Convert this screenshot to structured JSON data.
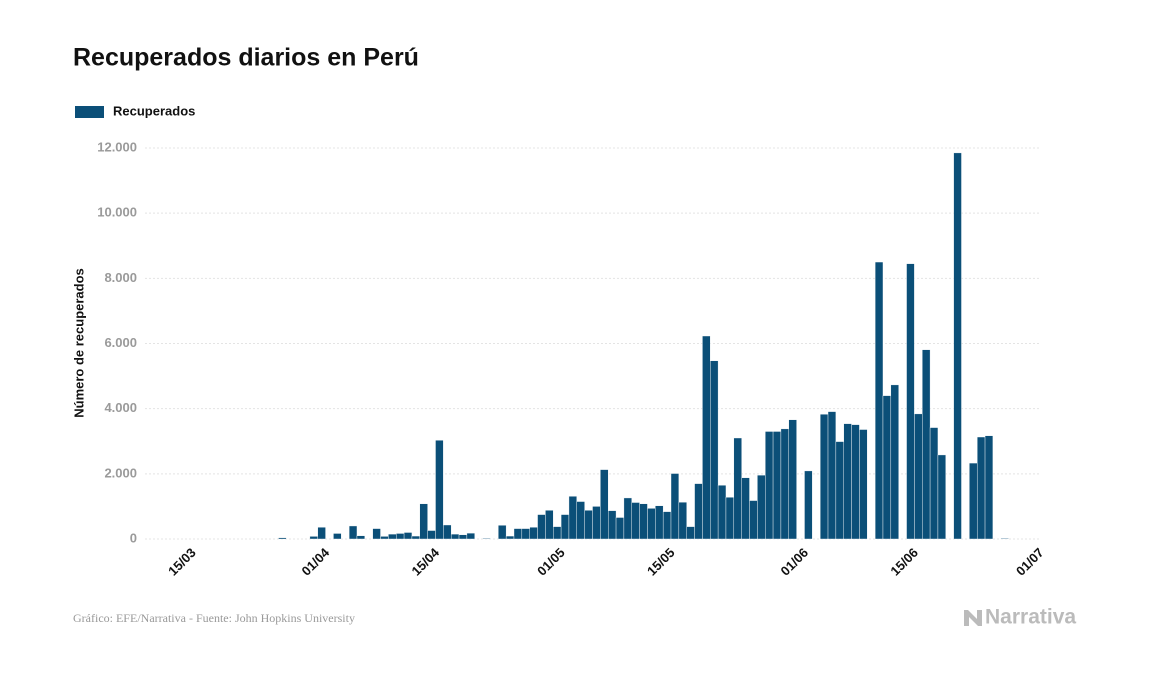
{
  "chart_data": {
    "type": "bar",
    "title": "Recuperados diarios en Perú",
    "ylabel": "Número de recuperados",
    "source": "Gráfico: EFE/Narrativa - Fuente: John Hopkins University",
    "brand": "Narrativa",
    "categories": [
      null,
      null,
      null,
      null,
      null,
      "15/03",
      null,
      null,
      null,
      null,
      null,
      null,
      null,
      null,
      null,
      null,
      null,
      null,
      null,
      null,
      null,
      null,
      "01/04",
      null,
      null,
      null,
      null,
      null,
      null,
      null,
      null,
      null,
      null,
      null,
      null,
      null,
      "15/04",
      null,
      null,
      null,
      null,
      null,
      null,
      null,
      null,
      null,
      null,
      null,
      null,
      null,
      null,
      null,
      "01/05",
      null,
      null,
      null,
      null,
      null,
      null,
      null,
      null,
      null,
      null,
      null,
      null,
      null,
      "15/05",
      null,
      null,
      null,
      null,
      null,
      null,
      null,
      null,
      null,
      null,
      null,
      null,
      null,
      null,
      null,
      null,
      "01/06",
      null,
      null,
      null,
      null,
      null,
      null,
      null,
      null,
      null,
      null,
      null,
      null,
      null,
      "15/06",
      null,
      null,
      null,
      null,
      null,
      null,
      null,
      null,
      null,
      null,
      null,
      null,
      null,
      null,
      null,
      "01/07"
    ],
    "series": [
      {
        "name": "Recuperados",
        "color": "#0b4f78",
        "values": [
          0,
          0,
          0,
          0,
          0,
          0,
          0,
          0,
          0,
          0,
          0,
          0,
          0,
          0,
          0,
          0,
          0,
          40,
          0,
          0,
          0,
          80,
          360,
          0,
          170,
          0,
          400,
          100,
          0,
          320,
          80,
          150,
          170,
          200,
          90,
          1080,
          260,
          3030,
          430,
          150,
          130,
          180,
          0,
          20,
          0,
          420,
          90,
          320,
          320,
          360,
          750,
          880,
          380,
          750,
          1310,
          1150,
          880,
          1000,
          2130,
          870,
          660,
          1260,
          1120,
          1080,
          940,
          1020,
          840,
          2010,
          1130,
          380,
          1700,
          6230,
          5470,
          1650,
          1280,
          3100,
          1880,
          1180,
          1960,
          3300,
          3300,
          3380,
          3660,
          0,
          2090,
          0,
          3830,
          3910,
          2990,
          3540,
          3510,
          3360,
          0,
          8500,
          4400,
          4730,
          0,
          8450,
          3840,
          5810,
          3420,
          2580,
          0,
          11850,
          0,
          2330,
          3130,
          3170,
          0,
          20,
          0,
          0,
          0,
          0
        ]
      }
    ],
    "ylim": [
      0,
      12000
    ],
    "yticks": [
      0,
      {
        "value": 2000,
        "label": "2.000"
      },
      {
        "value": 4000,
        "label": "4.000"
      },
      {
        "value": 6000,
        "label": "6.000"
      },
      {
        "value": 8000,
        "label": "8.000"
      },
      {
        "value": 10000,
        "label": "10.000"
      },
      {
        "value": 12000,
        "label": "12.000"
      }
    ],
    "grid": true
  }
}
